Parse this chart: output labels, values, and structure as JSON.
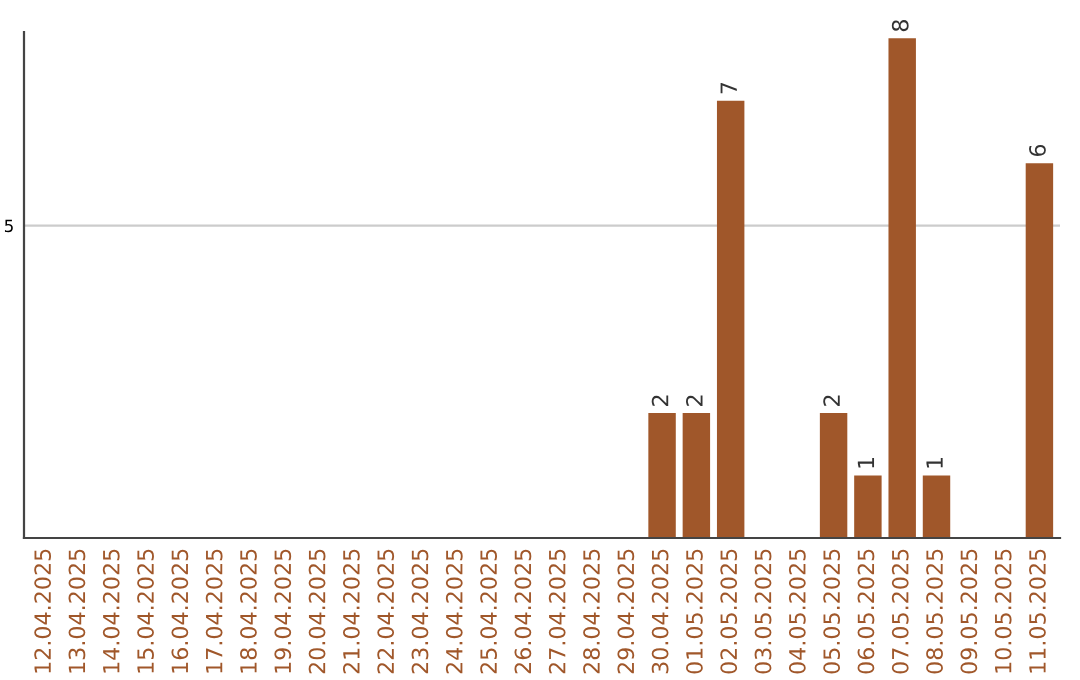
{
  "chart_data": {
    "type": "bar",
    "categories": [
      "12.04.2025",
      "13.04.2025",
      "14.04.2025",
      "15.04.2025",
      "16.04.2025",
      "17.04.2025",
      "18.04.2025",
      "19.04.2025",
      "20.04.2025",
      "21.04.2025",
      "22.04.2025",
      "23.04.2025",
      "24.04.2025",
      "25.04.2025",
      "26.04.2025",
      "27.04.2025",
      "28.04.2025",
      "29.04.2025",
      "30.04.2025",
      "01.05.2025",
      "02.05.2025",
      "03.05.2025",
      "04.05.2025",
      "05.05.2025",
      "06.05.2025",
      "07.05.2025",
      "08.05.2025",
      "09.05.2025",
      "10.05.2025",
      "11.05.2025"
    ],
    "values": [
      null,
      null,
      null,
      null,
      null,
      null,
      null,
      null,
      null,
      null,
      null,
      null,
      null,
      null,
      null,
      null,
      null,
      null,
      2,
      2,
      7,
      null,
      null,
      2,
      1,
      8,
      1,
      null,
      null,
      6
    ],
    "data_labels": true,
    "color": "#a0572a",
    "ylim": [
      0,
      8.1
    ],
    "yticks": [
      5
    ],
    "grid": "y"
  }
}
